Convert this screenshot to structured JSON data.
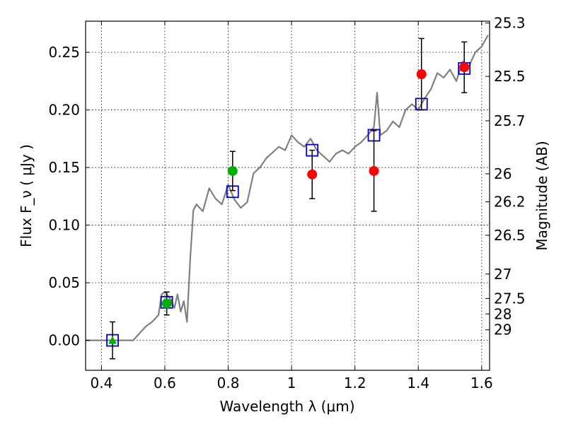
{
  "chart_data": {
    "type": "scatter",
    "title": "",
    "xlabel": "Wavelength  λ (μm)",
    "ylabel": "Flux  F_ν  ( μJy )",
    "ylabel_right": "Magnitude (AB)",
    "xlim": [
      0.35,
      1.625
    ],
    "ylim": [
      -0.026,
      0.277
    ],
    "grid": true,
    "x_ticks": [
      0.4,
      0.6,
      0.8,
      1.0,
      1.2,
      1.4,
      1.6
    ],
    "x_tick_labels": [
      "0.4",
      "0.6",
      "0.8",
      "1",
      "1.2",
      "1.4",
      "1.6"
    ],
    "y_ticks": [
      0.0,
      0.05,
      0.1,
      0.15,
      0.2,
      0.25
    ],
    "y_tick_labels": [
      "0.00",
      "0.05",
      "0.10",
      "0.15",
      "0.20",
      "0.25"
    ],
    "magnitude_ticks": [
      {
        "label": "25.3",
        "mag": 25.3
      },
      {
        "label": "25.5",
        "mag": 25.5
      },
      {
        "label": "25.7",
        "mag": 25.7
      },
      {
        "label": "26",
        "mag": 26.0
      },
      {
        "label": "26.2",
        "mag": 26.2
      },
      {
        "label": "26.5",
        "mag": 26.5
      },
      {
        "label": "27",
        "mag": 27.0
      },
      {
        "label": "27.5",
        "mag": 27.5
      },
      {
        "label": "28",
        "mag": 28.0
      },
      {
        "label": "29",
        "mag": 29.0
      }
    ],
    "series": [
      {
        "name": "model_spectrum",
        "kind": "line",
        "color": "#808080",
        "x": [
          0.35,
          0.5,
          0.52,
          0.54,
          0.56,
          0.58,
          0.59,
          0.6,
          0.62,
          0.63,
          0.64,
          0.65,
          0.66,
          0.67,
          0.68,
          0.69,
          0.7,
          0.72,
          0.74,
          0.76,
          0.78,
          0.8,
          0.82,
          0.84,
          0.86,
          0.88,
          0.9,
          0.92,
          0.94,
          0.96,
          0.98,
          1.0,
          1.02,
          1.04,
          1.06,
          1.08,
          1.1,
          1.12,
          1.14,
          1.16,
          1.18,
          1.2,
          1.22,
          1.24,
          1.26,
          1.27,
          1.28,
          1.3,
          1.32,
          1.34,
          1.36,
          1.38,
          1.4,
          1.42,
          1.44,
          1.46,
          1.48,
          1.5,
          1.52,
          1.54,
          1.56,
          1.58,
          1.6,
          1.62
        ],
        "y": [
          0.0,
          0.0,
          0.006,
          0.012,
          0.016,
          0.022,
          0.04,
          0.042,
          0.035,
          0.028,
          0.04,
          0.025,
          0.034,
          0.016,
          0.07,
          0.113,
          0.118,
          0.112,
          0.132,
          0.123,
          0.118,
          0.135,
          0.122,
          0.115,
          0.12,
          0.145,
          0.15,
          0.158,
          0.163,
          0.168,
          0.165,
          0.178,
          0.172,
          0.168,
          0.175,
          0.165,
          0.16,
          0.155,
          0.162,
          0.165,
          0.162,
          0.168,
          0.172,
          0.178,
          0.185,
          0.215,
          0.178,
          0.182,
          0.19,
          0.185,
          0.2,
          0.205,
          0.2,
          0.21,
          0.218,
          0.232,
          0.228,
          0.235,
          0.225,
          0.242,
          0.238,
          0.25,
          0.255,
          0.265
        ]
      },
      {
        "name": "model_photometry",
        "kind": "square",
        "color": "#0000cc",
        "x": [
          0.435,
          0.606,
          0.814,
          1.065,
          1.26,
          1.41,
          1.545
        ],
        "y": [
          0.0,
          0.033,
          0.129,
          0.165,
          0.178,
          0.205,
          0.236
        ]
      },
      {
        "name": "observed_optical",
        "kind": "circle",
        "color": "#00b000",
        "x": [
          0.606,
          0.814
        ],
        "y": [
          0.032,
          0.147
        ],
        "err": [
          0.01,
          0.017
        ]
      },
      {
        "name": "observed_upper_limit",
        "kind": "triangle",
        "color": "#00b000",
        "x": [
          0.435
        ],
        "y": [
          0.0
        ],
        "err": [
          0.016
        ]
      },
      {
        "name": "observed_nir",
        "kind": "circle",
        "color": "#ff0000",
        "x": [
          1.065,
          1.26,
          1.41,
          1.545
        ],
        "y": [
          0.144,
          0.147,
          0.231,
          0.237
        ],
        "err": [
          0.021,
          0.035,
          0.031,
          0.022
        ]
      }
    ]
  }
}
